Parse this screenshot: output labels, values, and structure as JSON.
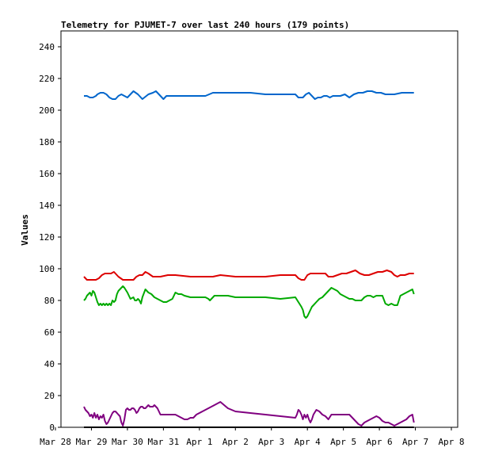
{
  "chart_data": {
    "type": "line",
    "title": "Telemetry for PJUMET-7 over last 240 hours (179 points)",
    "xlabel": "",
    "ylabel": "Values",
    "xlim": [
      0,
      240
    ],
    "ylim": [
      0,
      250
    ],
    "yticks": [
      0,
      20,
      40,
      60,
      80,
      100,
      120,
      140,
      160,
      180,
      200,
      220,
      240
    ],
    "xticks": [
      {
        "label": "Mar 28",
        "value": 0
      },
      {
        "label": "Mar 29",
        "value": 24
      },
      {
        "label": "Mar 30",
        "value": 48
      },
      {
        "label": "Mar 31",
        "value": 72
      },
      {
        "label": "Apr 1",
        "value": 96
      },
      {
        "label": "Apr 2",
        "value": 120
      },
      {
        "label": "Apr 3",
        "value": 144
      },
      {
        "label": "Apr 4",
        "value": 168
      },
      {
        "label": "Apr 5",
        "value": 192
      },
      {
        "label": "Apr 6",
        "value": 216
      },
      {
        "label": "Apr 7",
        "value": 240
      },
      {
        "label": "Apr 8",
        "value": 264
      }
    ],
    "grid": false,
    "series": [
      {
        "color": "#0066cc",
        "x": [
          19,
          21,
          23,
          25,
          27,
          28,
          30,
          32,
          34,
          36,
          38,
          40,
          42,
          44,
          46,
          48,
          50,
          52,
          55,
          58,
          62,
          65,
          67,
          70,
          72,
          74,
          76,
          80,
          85,
          90,
          95,
          100,
          105,
          108,
          110,
          112,
          115,
          120,
          130,
          140,
          150,
          160,
          162,
          165,
          167,
          169,
          171,
          173,
          175,
          177,
          179,
          181,
          183,
          185,
          187,
          190,
          193,
          196,
          199,
          202,
          205,
          208,
          211,
          214,
          217,
          220,
          222,
          226,
          231,
          236,
          239
        ],
        "y": [
          209,
          209,
          208,
          208,
          209,
          210,
          211,
          211,
          210,
          208,
          207,
          207,
          209,
          210,
          209,
          208,
          210,
          212,
          210,
          207,
          210,
          211,
          212,
          209,
          207,
          209,
          209,
          209,
          209,
          209,
          209,
          209,
          211,
          211,
          211,
          211,
          211,
          211,
          211,
          210,
          210,
          210,
          208,
          208,
          210,
          211,
          209,
          207,
          208,
          208,
          209,
          209,
          208,
          209,
          209,
          209,
          210,
          208,
          210,
          211,
          211,
          212,
          212,
          211,
          211,
          210,
          210,
          210,
          211,
          211,
          211
        ]
      },
      {
        "color": "#dd0000",
        "x": [
          19,
          21,
          23,
          25,
          27,
          29,
          31,
          33,
          35,
          37,
          39,
          42,
          45,
          48,
          50,
          52,
          54,
          56,
          58,
          60,
          62,
          65,
          70,
          75,
          80,
          90,
          100,
          105,
          110,
          120,
          130,
          140,
          150,
          160,
          162,
          164,
          166,
          168,
          170,
          172,
          174,
          176,
          178,
          180,
          182,
          185,
          188,
          191,
          194,
          197,
          200,
          203,
          206,
          209,
          212,
          215,
          218,
          221,
          224,
          226,
          228,
          230,
          233,
          236,
          239
        ],
        "y": [
          95,
          93,
          93,
          93,
          93,
          94,
          96,
          97,
          97,
          97,
          98,
          95,
          93,
          93,
          93,
          93,
          95,
          96,
          96,
          98,
          97,
          95,
          95,
          96,
          96,
          95,
          95,
          95,
          96,
          95,
          95,
          95,
          96,
          96,
          94,
          93,
          93,
          96,
          97,
          97,
          97,
          97,
          97,
          97,
          95,
          95,
          96,
          97,
          97,
          98,
          99,
          97,
          96,
          96,
          97,
          98,
          98,
          99,
          98,
          96,
          95,
          96,
          96,
          97,
          97
        ]
      },
      {
        "color": "#00aa00",
        "x": [
          19,
          20,
          21,
          22,
          23,
          24,
          25,
          26,
          27,
          28,
          29,
          30,
          31,
          32,
          33,
          34,
          35,
          36,
          37,
          38,
          39,
          40,
          41,
          42,
          43,
          44,
          45,
          46,
          48,
          50,
          52,
          53,
          54,
          55,
          56,
          57,
          58,
          60,
          61,
          62,
          64,
          66,
          68,
          70,
          72,
          74,
          76,
          78,
          80,
          82,
          84,
          86,
          90,
          95,
          100,
          102,
          103,
          104,
          106,
          108,
          110,
          115,
          120,
          130,
          140,
          150,
          160,
          164,
          165,
          166,
          167,
          168,
          169,
          170,
          171,
          172,
          174,
          176,
          178,
          180,
          182,
          184,
          186,
          188,
          190,
          192,
          194,
          196,
          198,
          200,
          202,
          204,
          206,
          208,
          210,
          212,
          214,
          216,
          218,
          220,
          222,
          224,
          226,
          228,
          230,
          232,
          234,
          236,
          238,
          239
        ],
        "y": [
          80,
          81,
          83,
          84,
          85,
          83,
          86,
          85,
          82,
          79,
          77,
          78,
          77,
          78,
          77,
          78,
          77,
          78,
          77,
          80,
          79,
          80,
          84,
          86,
          87,
          88,
          89,
          88,
          85,
          81,
          82,
          80,
          80,
          81,
          80,
          78,
          82,
          87,
          86,
          85,
          84,
          82,
          81,
          80,
          79,
          79,
          80,
          81,
          85,
          84,
          84,
          83,
          82,
          82,
          82,
          81,
          80,
          81,
          83,
          83,
          83,
          83,
          82,
          82,
          82,
          81,
          82,
          76,
          74,
          70,
          69,
          70,
          72,
          74,
          76,
          77,
          79,
          81,
          82,
          84,
          86,
          88,
          87,
          86,
          84,
          83,
          82,
          81,
          81,
          80,
          80,
          80,
          82,
          83,
          83,
          82,
          83,
          83,
          83,
          78,
          77,
          78,
          77,
          77,
          83,
          84,
          85,
          86,
          87,
          84
        ]
      },
      {
        "color": "#800080",
        "x": [
          19,
          20,
          21,
          22,
          23,
          24,
          25,
          26,
          27,
          28,
          29,
          30,
          31,
          32,
          33,
          34,
          35,
          36,
          37,
          38,
          39,
          40,
          41,
          42,
          43,
          44,
          45,
          46,
          47,
          48,
          49,
          50,
          51,
          52,
          53,
          54,
          55,
          56,
          57,
          58,
          59,
          60,
          61,
          62,
          63,
          64,
          65,
          66,
          67,
          68,
          70,
          72,
          74,
          76,
          78,
          80,
          82,
          84,
          86,
          88,
          90,
          92,
          94,
          96,
          98,
          100,
          102,
          104,
          106,
          108,
          110,
          115,
          120,
          130,
          140,
          150,
          160,
          161,
          162,
          163,
          164,
          165,
          166,
          167,
          168,
          169,
          170,
          171,
          172,
          174,
          176,
          178,
          180,
          182,
          184,
          186,
          188,
          190,
          192,
          194,
          196,
          198,
          200,
          202,
          204,
          206,
          208,
          210,
          212,
          214,
          216,
          218,
          220,
          222,
          224,
          226,
          228,
          230,
          232,
          234,
          236,
          238,
          239
        ],
        "y": [
          13,
          11,
          10,
          9,
          7,
          8,
          6,
          9,
          6,
          8,
          5,
          7,
          6,
          8,
          4,
          2,
          3,
          5,
          7,
          9,
          10,
          10,
          9,
          8,
          7,
          3,
          1,
          5,
          11,
          12,
          11,
          11,
          12,
          12,
          11,
          9,
          10,
          12,
          13,
          13,
          12,
          12,
          13,
          14,
          13,
          13,
          13,
          14,
          13,
          12,
          8,
          8,
          8,
          8,
          8,
          8,
          7,
          6,
          5,
          5,
          6,
          6,
          8,
          9,
          10,
          11,
          12,
          13,
          14,
          15,
          16,
          12,
          10,
          9,
          8,
          7,
          6,
          8,
          11,
          10,
          8,
          5,
          8,
          6,
          8,
          5,
          3,
          5,
          8,
          11,
          10,
          8,
          7,
          5,
          8,
          8,
          8,
          8,
          8,
          8,
          8,
          6,
          4,
          2,
          1,
          3,
          4,
          5,
          6,
          7,
          6,
          4,
          3,
          3,
          2,
          1,
          2,
          3,
          4,
          5,
          7,
          8,
          3
        ]
      },
      {
        "color": "#000000",
        "x": [
          19,
          60,
          100,
          140,
          180,
          220,
          239
        ],
        "y": [
          0,
          0,
          0,
          0,
          0,
          0,
          0
        ]
      }
    ]
  }
}
